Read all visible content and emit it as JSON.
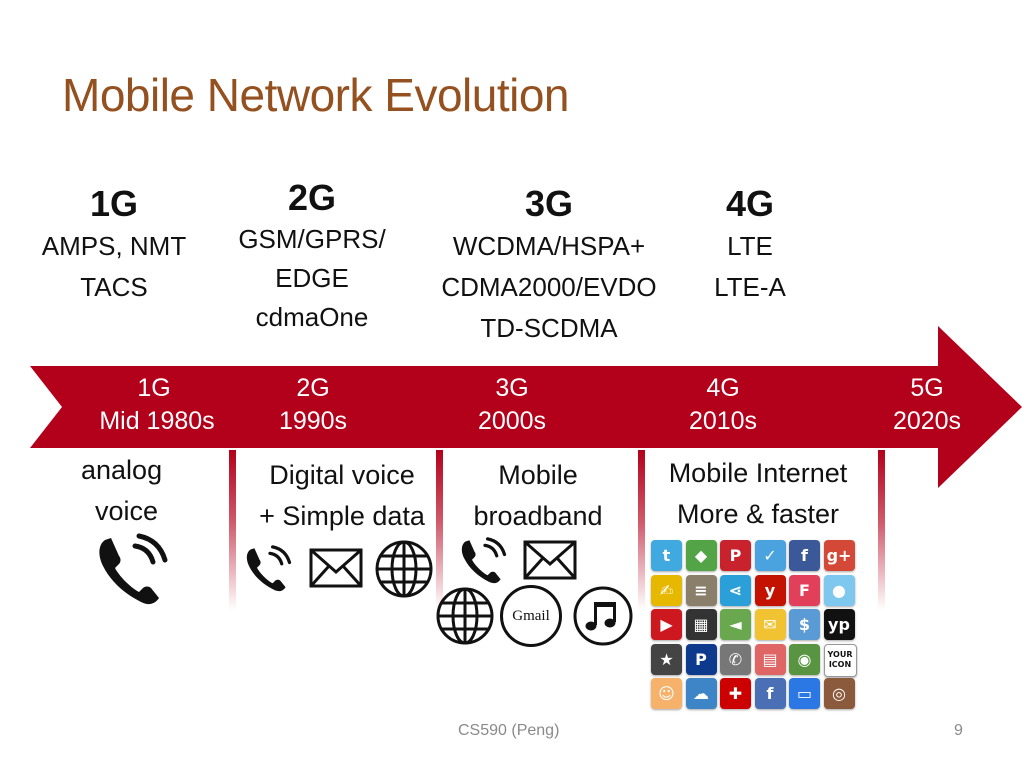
{
  "title": "Mobile Network Evolution",
  "generations": [
    {
      "name": "1G",
      "techs": [
        "AMPS, NMT",
        "TACS"
      ]
    },
    {
      "name": "2G",
      "techs": [
        "GSM/GPRS/",
        "EDGE",
        "cdmaOne"
      ]
    },
    {
      "name": "3G",
      "techs": [
        "WCDMA/HSPA+",
        "CDMA2000/EVDO",
        "TD-SCDMA"
      ]
    },
    {
      "name": "4G",
      "techs": [
        "LTE",
        "LTE-A"
      ]
    }
  ],
  "timeline": [
    {
      "gen": "1G",
      "era": "Mid 1980s"
    },
    {
      "gen": "2G",
      "era": "1990s"
    },
    {
      "gen": "3G",
      "era": "2000s"
    },
    {
      "gen": "4G",
      "era": "2010s"
    },
    {
      "gen": "5G",
      "era": "2020s"
    }
  ],
  "capabilities": [
    {
      "lines": [
        "analog",
        "voice"
      ]
    },
    {
      "lines": [
        "Digital voice",
        "+ Simple data"
      ]
    },
    {
      "lines": [
        "Mobile",
        "broadband"
      ]
    },
    {
      "lines": [
        "Mobile Internet",
        "More & faster"
      ]
    }
  ],
  "icons": {
    "gmail_text": "Gmail",
    "apps": [
      {
        "name": "twitter-icon",
        "glyph": "t",
        "color": "#3fa9e0"
      },
      {
        "name": "maps-icon",
        "glyph": "◆",
        "color": "#52a447"
      },
      {
        "name": "pinterest-icon",
        "glyph": "P",
        "color": "#c8232c"
      },
      {
        "name": "foursquare-icon",
        "glyph": "✓",
        "color": "#4aa3df"
      },
      {
        "name": "facebook-icon",
        "glyph": "f",
        "color": "#3b5998"
      },
      {
        "name": "googleplus-icon",
        "glyph": "g+",
        "color": "#d34836"
      },
      {
        "name": "help-wanted-icon",
        "glyph": "✍",
        "color": "#e6b800"
      },
      {
        "name": "notes-icon",
        "glyph": "≡",
        "color": "#8a7f6a"
      },
      {
        "name": "share-icon",
        "glyph": "⋖",
        "color": "#2b9fd8"
      },
      {
        "name": "yelp-icon",
        "glyph": "y",
        "color": "#c41200"
      },
      {
        "name": "foursquare-f-icon",
        "glyph": "F",
        "color": "#e2405a"
      },
      {
        "name": "chat-bubble-icon",
        "glyph": "●",
        "color": "#7ec8f0"
      },
      {
        "name": "youtube-icon",
        "glyph": "▶",
        "color": "#cc181e"
      },
      {
        "name": "qr-code-icon",
        "glyph": "▦",
        "color": "#333333"
      },
      {
        "name": "megaphone-icon",
        "glyph": "◄",
        "color": "#6aa84f"
      },
      {
        "name": "sms-icon",
        "glyph": "✉",
        "color": "#f1c232"
      },
      {
        "name": "coupon-icon",
        "glyph": "$",
        "color": "#5a9bd5"
      },
      {
        "name": "yellow-pages-icon",
        "glyph": "yp",
        "color": "#111111"
      },
      {
        "name": "review-icon",
        "glyph": "★",
        "color": "#444444"
      },
      {
        "name": "paypal-icon",
        "glyph": "P",
        "color": "#0d3a8c"
      },
      {
        "name": "phone-icon",
        "glyph": "✆",
        "color": "#777777"
      },
      {
        "name": "calendar-icon",
        "glyph": "▤",
        "color": "#e06666"
      },
      {
        "name": "tripadvisor-icon",
        "glyph": "◉",
        "color": "#589442"
      },
      {
        "name": "your-icon-icon",
        "glyph": "",
        "color": "#ffffff"
      },
      {
        "name": "emoji-icon",
        "glyph": "☺",
        "color": "#f6b26b"
      },
      {
        "name": "cloud-icon",
        "glyph": "☁",
        "color": "#3d85c6"
      },
      {
        "name": "gift-icon",
        "glyph": "✚",
        "color": "#cc0000"
      },
      {
        "name": "camera-facebook-icon",
        "glyph": "f",
        "color": "#4a6fb5"
      },
      {
        "name": "monitor-icon",
        "glyph": "▭",
        "color": "#2b78e4"
      },
      {
        "name": "instagram-icon",
        "glyph": "◎",
        "color": "#8b5a3c"
      }
    ],
    "your_icon_label": [
      "YOUR",
      "ICON"
    ]
  },
  "footer": {
    "center": "CS590 (Peng)",
    "page": "9"
  },
  "colors": {
    "title": "#94501f",
    "arrow": "#b3001b"
  }
}
